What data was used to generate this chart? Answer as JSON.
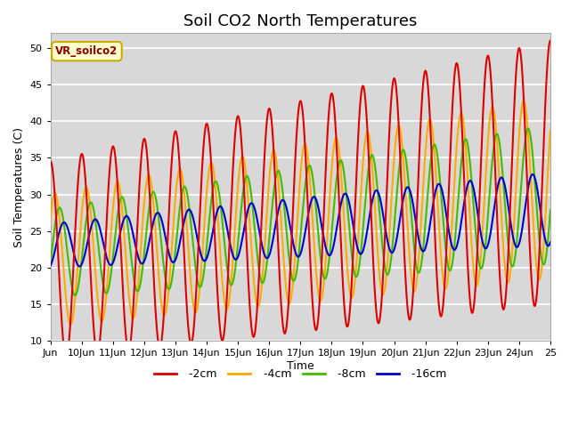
{
  "title": "Soil CO2 North Temperatures",
  "ylabel": "Soil Temperatures (C)",
  "xlabel": "Time",
  "legend_label": "VR_soilco2",
  "ylim": [
    10,
    52
  ],
  "xlim_days": [
    9,
    25
  ],
  "series": {
    "-2cm": {
      "color": "#dd0000",
      "lw": 1.5
    },
    "-4cm": {
      "color": "#ffaa00",
      "lw": 1.5
    },
    "-8cm": {
      "color": "#44bb00",
      "lw": 1.5
    },
    "-16cm": {
      "color": "#0000cc",
      "lw": 1.5
    }
  },
  "tick_days": [
    9,
    10,
    11,
    12,
    13,
    14,
    15,
    16,
    17,
    18,
    19,
    20,
    21,
    22,
    23,
    24,
    25
  ],
  "tick_labels": [
    "Jun",
    "10Jun",
    "11Jun",
    "12Jun",
    "13Jun",
    "14Jun",
    "15Jun",
    "16Jun",
    "17Jun",
    "18Jun",
    "19Jun",
    "20Jun",
    "21Jun",
    "22Jun",
    "23Jun",
    "24Jun",
    "25"
  ],
  "axes_face_color": "#d8d8d8",
  "figure_face_color": "#ffffff",
  "grid_color": "#ffffff",
  "title_fontsize": 13,
  "label_fontsize": 9,
  "tick_fontsize": 8,
  "legend_box_color": "#ffffcc",
  "legend_box_edge": "#ccaa00"
}
